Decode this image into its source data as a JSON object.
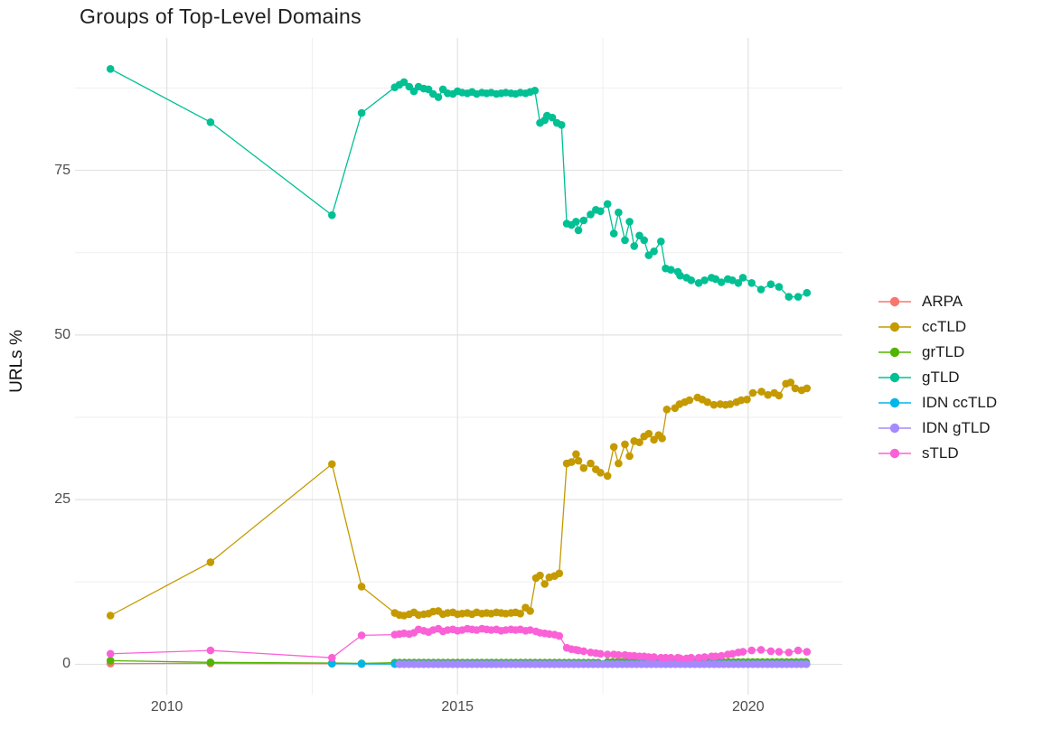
{
  "page": {
    "background": "#ffffff"
  },
  "chart_data": {
    "type": "line",
    "title": "Groups of Top-Level Domains",
    "xlabel": "",
    "ylabel": "URLs %",
    "grid": "on",
    "legend_position": "right",
    "xlim": [
      2008.42,
      2021.62
    ],
    "ylim": [
      -4.6,
      95.1
    ],
    "x_ticks": [
      {
        "v": 2010,
        "label": "2010"
      },
      {
        "v": 2015,
        "label": "2015"
      },
      {
        "v": 2020,
        "label": "2020"
      }
    ],
    "y_ticks": [
      {
        "v": 0,
        "label": "0"
      },
      {
        "v": 25,
        "label": "25"
      },
      {
        "v": 50,
        "label": "50"
      },
      {
        "v": 75,
        "label": "75"
      }
    ],
    "x_minor": [
      2012.5,
      2017.5
    ],
    "y_minor": [
      12.5,
      37.5,
      62.5,
      87.5
    ],
    "colors": {
      "grid_major": "#e2e2e2",
      "grid_minor": "#efefef",
      "axis_text": "#4d4d4d",
      "title_text": "#1f1f1f"
    },
    "series": [
      {
        "name": "ARPA",
        "color": "#F8766D",
        "points": [
          [
            2009.03,
            0.12
          ],
          [
            2010.75,
            0.15
          ],
          [
            2012.84,
            0.1
          ],
          [
            2013.35,
            0.08
          ]
        ],
        "runs": [
          {
            "from": 2013.92,
            "to": 2021.01,
            "step": 0.0833,
            "y": 0.05
          }
        ]
      },
      {
        "name": "ccTLD",
        "color": "#C49A00",
        "points": [
          [
            2009.03,
            7.4
          ],
          [
            2010.75,
            15.5
          ],
          [
            2012.84,
            30.4
          ],
          [
            2013.35,
            11.8
          ],
          [
            2013.92,
            7.8
          ],
          [
            2014.0,
            7.5
          ],
          [
            2014.08,
            7.4
          ],
          [
            2014.17,
            7.6
          ],
          [
            2014.25,
            7.9
          ],
          [
            2014.33,
            7.5
          ],
          [
            2014.42,
            7.6
          ],
          [
            2014.5,
            7.7
          ],
          [
            2014.58,
            8.0
          ],
          [
            2014.67,
            8.1
          ],
          [
            2014.75,
            7.6
          ],
          [
            2014.83,
            7.8
          ],
          [
            2014.92,
            7.9
          ],
          [
            2015.0,
            7.6
          ],
          [
            2015.08,
            7.7
          ],
          [
            2015.17,
            7.8
          ],
          [
            2015.25,
            7.6
          ],
          [
            2015.33,
            7.9
          ],
          [
            2015.42,
            7.7
          ],
          [
            2015.5,
            7.8
          ],
          [
            2015.58,
            7.7
          ],
          [
            2015.67,
            7.9
          ],
          [
            2015.75,
            7.8
          ],
          [
            2015.83,
            7.7
          ],
          [
            2015.92,
            7.8
          ],
          [
            2016.0,
            7.9
          ],
          [
            2016.08,
            7.7
          ],
          [
            2016.17,
            8.6
          ],
          [
            2016.25,
            8.1
          ],
          [
            2016.35,
            13.1
          ],
          [
            2016.42,
            13.5
          ],
          [
            2016.5,
            12.2
          ],
          [
            2016.58,
            13.2
          ],
          [
            2016.67,
            13.4
          ],
          [
            2016.75,
            13.8
          ],
          [
            2016.88,
            30.5
          ],
          [
            2016.96,
            30.7
          ],
          [
            2017.04,
            31.9
          ],
          [
            2017.08,
            30.9
          ],
          [
            2017.17,
            29.8
          ],
          [
            2017.29,
            30.5
          ],
          [
            2017.38,
            29.6
          ],
          [
            2017.46,
            29.1
          ],
          [
            2017.58,
            28.6
          ],
          [
            2017.69,
            33.0
          ],
          [
            2017.77,
            30.5
          ],
          [
            2017.88,
            33.4
          ],
          [
            2017.96,
            31.6
          ],
          [
            2018.04,
            33.9
          ],
          [
            2018.13,
            33.7
          ],
          [
            2018.21,
            34.6
          ],
          [
            2018.29,
            35.0
          ],
          [
            2018.38,
            34.1
          ],
          [
            2018.46,
            34.8
          ],
          [
            2018.52,
            34.3
          ],
          [
            2018.6,
            38.7
          ],
          [
            2018.74,
            38.9
          ],
          [
            2018.82,
            39.5
          ],
          [
            2018.91,
            39.8
          ],
          [
            2018.99,
            40.1
          ],
          [
            2019.13,
            40.5
          ],
          [
            2019.21,
            40.2
          ],
          [
            2019.3,
            39.8
          ],
          [
            2019.41,
            39.4
          ],
          [
            2019.52,
            39.5
          ],
          [
            2019.61,
            39.4
          ],
          [
            2019.69,
            39.5
          ],
          [
            2019.8,
            39.8
          ],
          [
            2019.88,
            40.1
          ],
          [
            2019.98,
            40.2
          ],
          [
            2020.08,
            41.2
          ],
          [
            2020.23,
            41.4
          ],
          [
            2020.34,
            40.9
          ],
          [
            2020.45,
            41.2
          ],
          [
            2020.53,
            40.8
          ],
          [
            2020.65,
            42.6
          ],
          [
            2020.73,
            42.8
          ],
          [
            2020.81,
            41.9
          ],
          [
            2020.92,
            41.6
          ],
          [
            2021.01,
            41.9
          ]
        ],
        "runs": []
      },
      {
        "name": "grTLD",
        "color": "#53B400",
        "points": [
          [
            2009.03,
            0.55
          ],
          [
            2010.75,
            0.3
          ],
          [
            2012.84,
            0.2
          ],
          [
            2013.35,
            0.15
          ]
        ],
        "runs": [
          {
            "from": 2013.92,
            "to": 2017.5,
            "step": 0.0833,
            "y": 0.25
          },
          {
            "from": 2017.58,
            "to": 2021.01,
            "step": 0.0833,
            "y": 0.35
          }
        ]
      },
      {
        "name": "gTLD",
        "color": "#00C094",
        "points": [
          [
            2009.03,
            90.4
          ],
          [
            2010.75,
            82.3
          ],
          [
            2012.84,
            68.2
          ],
          [
            2013.35,
            83.7
          ],
          [
            2013.92,
            87.6
          ],
          [
            2014.0,
            88.0
          ],
          [
            2014.08,
            88.4
          ],
          [
            2014.17,
            87.7
          ],
          [
            2014.25,
            87.0
          ],
          [
            2014.33,
            87.7
          ],
          [
            2014.42,
            87.4
          ],
          [
            2014.5,
            87.3
          ],
          [
            2014.58,
            86.6
          ],
          [
            2014.67,
            86.1
          ],
          [
            2014.75,
            87.3
          ],
          [
            2014.83,
            86.7
          ],
          [
            2014.92,
            86.6
          ],
          [
            2015.0,
            87.0
          ],
          [
            2015.08,
            86.8
          ],
          [
            2015.17,
            86.7
          ],
          [
            2015.25,
            86.9
          ],
          [
            2015.33,
            86.6
          ],
          [
            2015.42,
            86.8
          ],
          [
            2015.5,
            86.7
          ],
          [
            2015.58,
            86.8
          ],
          [
            2015.67,
            86.6
          ],
          [
            2015.75,
            86.7
          ],
          [
            2015.83,
            86.8
          ],
          [
            2015.92,
            86.7
          ],
          [
            2016.0,
            86.6
          ],
          [
            2016.08,
            86.8
          ],
          [
            2016.17,
            86.7
          ],
          [
            2016.25,
            86.9
          ],
          [
            2016.33,
            87.1
          ],
          [
            2016.42,
            82.2
          ],
          [
            2016.5,
            82.6
          ],
          [
            2016.54,
            83.3
          ],
          [
            2016.63,
            83.0
          ],
          [
            2016.71,
            82.2
          ],
          [
            2016.79,
            81.9
          ],
          [
            2016.88,
            66.9
          ],
          [
            2016.96,
            66.7
          ],
          [
            2017.04,
            67.2
          ],
          [
            2017.08,
            65.9
          ],
          [
            2017.17,
            67.4
          ],
          [
            2017.29,
            68.3
          ],
          [
            2017.38,
            69.0
          ],
          [
            2017.46,
            68.8
          ],
          [
            2017.58,
            69.9
          ],
          [
            2017.69,
            65.4
          ],
          [
            2017.77,
            68.6
          ],
          [
            2017.88,
            64.4
          ],
          [
            2017.96,
            67.2
          ],
          [
            2018.04,
            63.5
          ],
          [
            2018.13,
            65.1
          ],
          [
            2018.21,
            64.4
          ],
          [
            2018.29,
            62.1
          ],
          [
            2018.38,
            62.7
          ],
          [
            2018.5,
            64.2
          ],
          [
            2018.58,
            60.1
          ],
          [
            2018.67,
            59.9
          ],
          [
            2018.79,
            59.6
          ],
          [
            2018.83,
            59.0
          ],
          [
            2018.94,
            58.7
          ],
          [
            2019.02,
            58.3
          ],
          [
            2019.15,
            57.9
          ],
          [
            2019.25,
            58.3
          ],
          [
            2019.37,
            58.7
          ],
          [
            2019.44,
            58.5
          ],
          [
            2019.54,
            58.0
          ],
          [
            2019.65,
            58.5
          ],
          [
            2019.73,
            58.3
          ],
          [
            2019.83,
            57.9
          ],
          [
            2019.91,
            58.7
          ],
          [
            2020.06,
            57.9
          ],
          [
            2020.22,
            56.9
          ],
          [
            2020.39,
            57.7
          ],
          [
            2020.53,
            57.3
          ],
          [
            2020.7,
            55.8
          ],
          [
            2020.86,
            55.8
          ],
          [
            2021.01,
            56.4
          ]
        ],
        "runs": []
      },
      {
        "name": "IDN ccTLD",
        "color": "#00B6EB",
        "points": [
          [
            2012.84,
            0.1
          ],
          [
            2013.35,
            0.05
          ]
        ],
        "runs": [
          {
            "from": 2013.92,
            "to": 2021.01,
            "step": 0.0833,
            "y": 0.05
          }
        ]
      },
      {
        "name": "IDN gTLD",
        "color": "#A58AFF",
        "points": [],
        "runs": [
          {
            "from": 2014.0,
            "to": 2021.01,
            "step": 0.0833,
            "y": 0.02
          }
        ]
      },
      {
        "name": "sTLD",
        "color": "#FB61D7",
        "points": [
          [
            2009.03,
            1.6
          ],
          [
            2010.75,
            2.1
          ],
          [
            2012.84,
            1.0
          ],
          [
            2013.35,
            4.4
          ],
          [
            2013.92,
            4.5
          ],
          [
            2014.0,
            4.6
          ],
          [
            2014.08,
            4.7
          ],
          [
            2014.17,
            4.6
          ],
          [
            2014.25,
            4.8
          ],
          [
            2014.33,
            5.3
          ],
          [
            2014.42,
            5.1
          ],
          [
            2014.5,
            4.9
          ],
          [
            2014.58,
            5.2
          ],
          [
            2014.67,
            5.4
          ],
          [
            2014.75,
            5.0
          ],
          [
            2014.83,
            5.2
          ],
          [
            2014.92,
            5.3
          ],
          [
            2015.0,
            5.1
          ],
          [
            2015.08,
            5.2
          ],
          [
            2015.17,
            5.4
          ],
          [
            2015.25,
            5.3
          ],
          [
            2015.33,
            5.2
          ],
          [
            2015.42,
            5.4
          ],
          [
            2015.5,
            5.3
          ],
          [
            2015.58,
            5.2
          ],
          [
            2015.67,
            5.3
          ],
          [
            2015.75,
            5.1
          ],
          [
            2015.83,
            5.2
          ],
          [
            2015.92,
            5.3
          ],
          [
            2016.0,
            5.2
          ],
          [
            2016.08,
            5.3
          ],
          [
            2016.17,
            5.1
          ],
          [
            2016.25,
            5.2
          ],
          [
            2016.35,
            5.0
          ],
          [
            2016.42,
            4.8
          ],
          [
            2016.5,
            4.7
          ],
          [
            2016.58,
            4.6
          ],
          [
            2016.67,
            4.5
          ],
          [
            2016.75,
            4.3
          ],
          [
            2016.88,
            2.5
          ],
          [
            2016.96,
            2.3
          ],
          [
            2017.04,
            2.2
          ],
          [
            2017.08,
            2.1
          ],
          [
            2017.17,
            2.0
          ],
          [
            2017.29,
            1.8
          ],
          [
            2017.38,
            1.7
          ],
          [
            2017.46,
            1.6
          ],
          [
            2017.58,
            1.5
          ],
          [
            2017.69,
            1.5
          ],
          [
            2017.77,
            1.4
          ],
          [
            2017.88,
            1.4
          ],
          [
            2017.96,
            1.3
          ],
          [
            2018.04,
            1.3
          ],
          [
            2018.13,
            1.2
          ],
          [
            2018.21,
            1.2
          ],
          [
            2018.29,
            1.1
          ],
          [
            2018.38,
            1.1
          ],
          [
            2018.5,
            1.0
          ],
          [
            2018.58,
            1.0
          ],
          [
            2018.67,
            1.0
          ],
          [
            2018.79,
            1.0
          ],
          [
            2018.83,
            0.9
          ],
          [
            2018.94,
            0.9
          ],
          [
            2019.02,
            1.0
          ],
          [
            2019.15,
            1.0
          ],
          [
            2019.25,
            1.1
          ],
          [
            2019.37,
            1.2
          ],
          [
            2019.44,
            1.2
          ],
          [
            2019.54,
            1.3
          ],
          [
            2019.65,
            1.5
          ],
          [
            2019.73,
            1.6
          ],
          [
            2019.83,
            1.8
          ],
          [
            2019.91,
            1.9
          ],
          [
            2020.06,
            2.1
          ],
          [
            2020.22,
            2.2
          ],
          [
            2020.39,
            2.0
          ],
          [
            2020.53,
            1.9
          ],
          [
            2020.7,
            1.8
          ],
          [
            2020.86,
            2.1
          ],
          [
            2021.01,
            1.9
          ]
        ],
        "runs": []
      }
    ]
  }
}
